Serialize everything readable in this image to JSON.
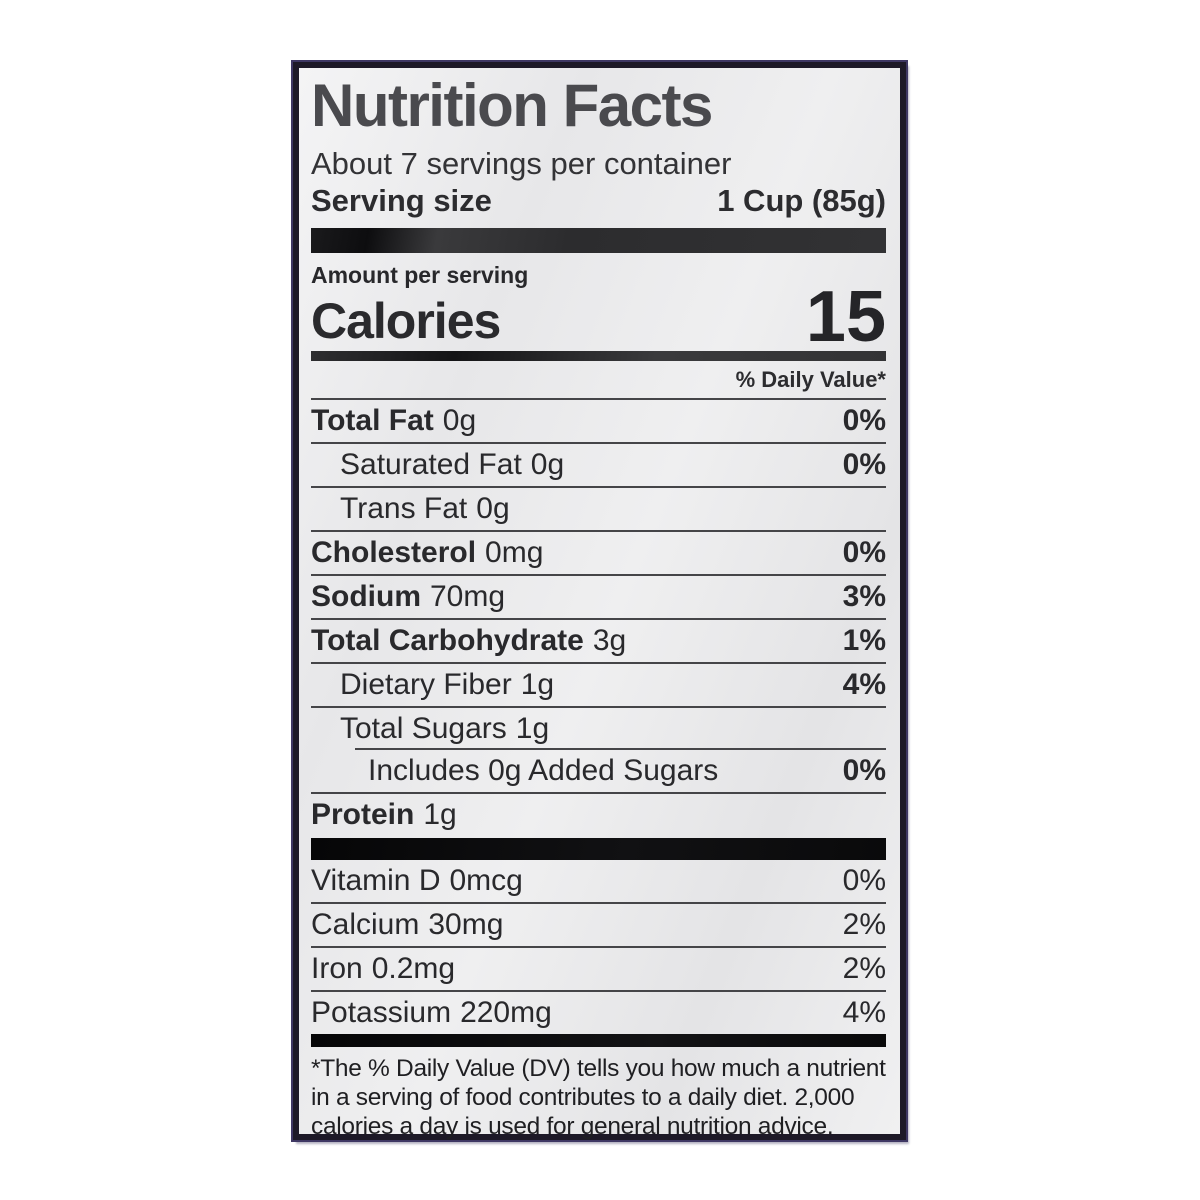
{
  "label": {
    "title": "Nutrition Facts",
    "servings_per_container": "About 7 servings per container",
    "serving_size_label": "Serving size",
    "serving_size_value": "1 Cup (85g)",
    "amount_per_serving": "Amount per serving",
    "calories_label": "Calories",
    "calories_value": "15",
    "daily_value_header": "% Daily Value*",
    "nutrients": [
      {
        "name": "Total Fat",
        "amount": "0g",
        "dv": "0%"
      },
      {
        "name": "Saturated Fat",
        "amount": "0g",
        "dv": "0%"
      },
      {
        "name": "Trans Fat",
        "amount": "0g",
        "dv": ""
      },
      {
        "name": "Cholesterol",
        "amount": "0mg",
        "dv": "0%"
      },
      {
        "name": "Sodium",
        "amount": "70mg",
        "dv": "3%"
      },
      {
        "name": "Total Carbohydrate",
        "amount": "3g",
        "dv": "1%"
      },
      {
        "name": "Dietary Fiber",
        "amount": "1g",
        "dv": "4%"
      },
      {
        "name": "Total Sugars",
        "amount": "1g",
        "dv": ""
      },
      {
        "name": "Includes 0g Added Sugars",
        "amount": "",
        "dv": "0%"
      },
      {
        "name": "Protein",
        "amount": "1g",
        "dv": ""
      }
    ],
    "micronutrients": [
      {
        "name": "Vitamin D",
        "amount": "0mcg",
        "dv": "0%"
      },
      {
        "name": "Calcium",
        "amount": "30mg",
        "dv": "2%"
      },
      {
        "name": "Iron",
        "amount": "0.2mg",
        "dv": "2%"
      },
      {
        "name": "Potassium",
        "amount": "220mg",
        "dv": "4%"
      }
    ],
    "footnote": "*The % Daily Value (DV) tells you how much a nutrient in a serving of food contributes to a daily diet. 2,000 calories a day is used for general nutrition advice."
  },
  "colors": {
    "label_background": "#ebebec",
    "body_text": "#29292c",
    "title_text": "#4a4a4e",
    "thick_bar": "#111113",
    "hairline": "#454548",
    "border": "#1d1927",
    "border_fringe": "#3e3763"
  }
}
